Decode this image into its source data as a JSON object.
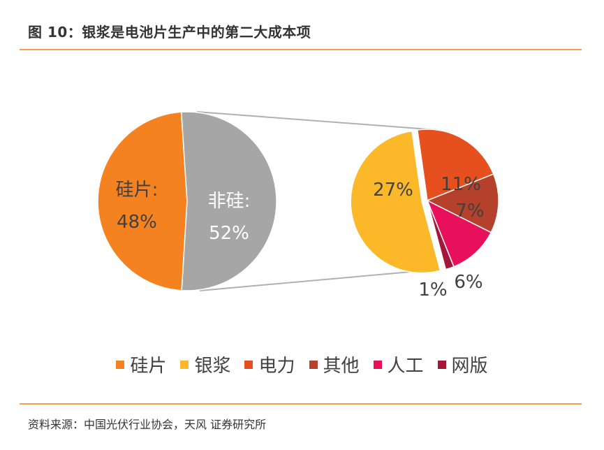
{
  "title": "图 10：银浆是电池片生产中的第二大成本项",
  "source": "资料来源：中国光伏行业协会，天风 证券研究所",
  "chart_data": {
    "type": "pie",
    "main_pie": {
      "slices": [
        {
          "name": "硅片",
          "label": "硅片:",
          "value": 48,
          "value_label": "48%",
          "color": "#f58220"
        },
        {
          "name": "非硅",
          "label": "非硅:",
          "value": 52,
          "value_label": "52%",
          "color": "#a6a6a6"
        }
      ]
    },
    "breakdown_pie": {
      "slices": [
        {
          "name": "银浆",
          "value": 27,
          "value_label": "27%",
          "color": "#fbb92a"
        },
        {
          "name": "电力",
          "value": 11,
          "value_label": "11%",
          "color": "#e5501e"
        },
        {
          "name": "其他",
          "value": 7,
          "value_label": "7%",
          "color": "#b5402c"
        },
        {
          "name": "人工",
          "value": 6,
          "value_label": "6%",
          "color": "#e8105a"
        },
        {
          "name": "网版",
          "value": 1,
          "value_label": "1%",
          "color": "#a5173a"
        }
      ]
    },
    "legend": [
      {
        "name": "硅片",
        "color": "#f58220"
      },
      {
        "name": "银浆",
        "color": "#fbb92a"
      },
      {
        "name": "电力",
        "color": "#e5501e"
      },
      {
        "name": "其他",
        "color": "#b5402c"
      },
      {
        "name": "人工",
        "color": "#e8105a"
      },
      {
        "name": "网版",
        "color": "#a5173a"
      }
    ],
    "legend_position": "bottom"
  }
}
